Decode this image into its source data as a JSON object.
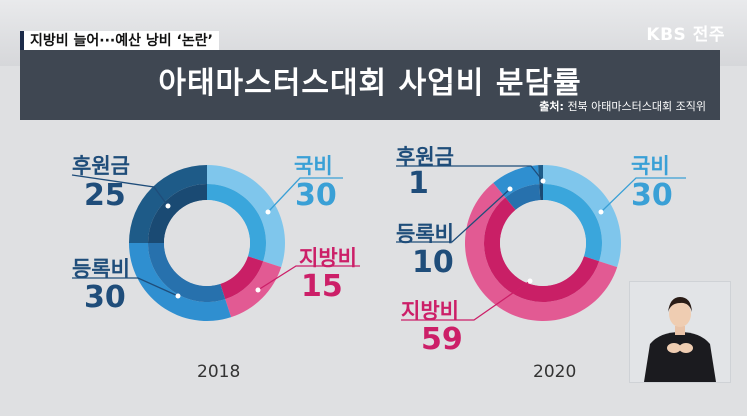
{
  "headline": "지방비 늘어···예산 낭비 ‘논란’",
  "broadcaster": "KBS 전주",
  "title": "아태마스터스대회 사업비 분담률",
  "source": {
    "label": "출처:",
    "text": "전북 아태마스터스대회 조직위"
  },
  "colors": {
    "national": "#7fc6ec",
    "local": "#e25a93",
    "registration": "#2f8fd0",
    "sponsorship": "#1e5b88",
    "highlight": "#cc1f68"
  },
  "chart_data": [
    {
      "type": "pie",
      "year": "2018",
      "slices": [
        {
          "label": "국비",
          "value": 30
        },
        {
          "label": "지방비",
          "value": 15
        },
        {
          "label": "등록비",
          "value": 30
        },
        {
          "label": "후원금",
          "value": 25
        }
      ]
    },
    {
      "type": "pie",
      "year": "2020",
      "slices": [
        {
          "label": "국비",
          "value": 30
        },
        {
          "label": "지방비",
          "value": 59
        },
        {
          "label": "등록비",
          "value": 10
        },
        {
          "label": "후원금",
          "value": 1
        }
      ]
    }
  ],
  "labels2018": {
    "sponsorship": {
      "name": "후원금",
      "value": "25"
    },
    "national": {
      "name": "국비",
      "value": "30"
    },
    "registration": {
      "name": "등록비",
      "value": "30"
    },
    "local": {
      "name": "지방비",
      "value": "15"
    }
  },
  "labels2020": {
    "sponsorship": {
      "name": "후원금",
      "value": "1"
    },
    "national": {
      "name": "국비",
      "value": "30"
    },
    "registration": {
      "name": "등록비",
      "value": "10"
    },
    "local": {
      "name": "지방비",
      "value": "59"
    }
  }
}
